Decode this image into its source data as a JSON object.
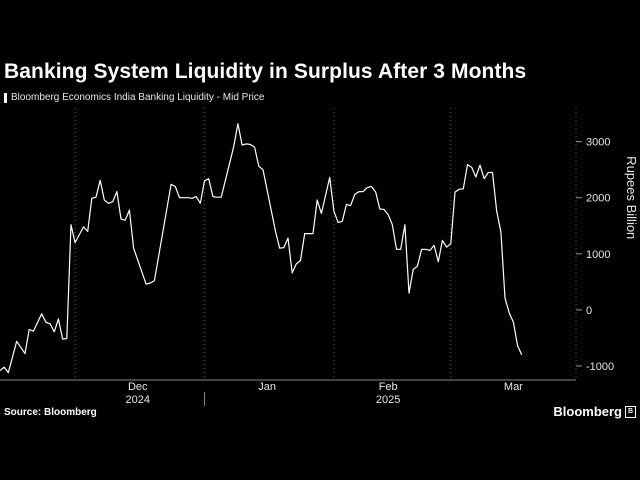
{
  "title": "Banking System Liquidity in Surplus After 3 Months",
  "source": "Source: Bloomberg",
  "brand": "Bloomberg",
  "colors": {
    "background": "#000000",
    "line": "#ffffff",
    "grid": "#5a5a5a",
    "text": "#e6e6e6"
  },
  "chart_data": {
    "type": "line",
    "title": "Banking System Liquidity in Surplus After 3 Months",
    "ylabel": "Rupees Billion",
    "ylim": [
      -1250,
      3600
    ],
    "yticks": [
      -1000,
      0,
      1000,
      2000,
      3000
    ],
    "ytick_labels": [
      "-1000",
      "0",
      "1000",
      "2000",
      "3000"
    ],
    "y_axis_position": "right",
    "grid": "vertical dotted at month starts",
    "xlim": [
      "2024-11-13",
      "2025-03-31"
    ],
    "x_month_ticks": [
      {
        "label": "Dec",
        "date": "2024-12-01",
        "center": "2024-12-16"
      },
      {
        "label": "Jan",
        "date": "2025-01-01",
        "center": "2025-01-16"
      },
      {
        "label": "Feb",
        "date": "2025-02-01",
        "center": "2025-02-14"
      },
      {
        "label": "Mar",
        "date": "2025-03-01",
        "center": "2025-03-16"
      }
    ],
    "x_year_labels": [
      {
        "label": "2024",
        "center": "2024-12-16"
      },
      {
        "label": "2025",
        "center": "2025-02-14"
      }
    ],
    "year_divider": "2025-01-01",
    "legend": [
      "Bloomberg Economics India Banking Liquidity - Mid Price"
    ],
    "series": [
      {
        "name": "Bloomberg Economics India Banking Liquidity - Mid Price",
        "points": [
          [
            "2024-11-13",
            -1080
          ],
          [
            "2024-11-14",
            -1020
          ],
          [
            "2024-11-15",
            -1120
          ],
          [
            "2024-11-17",
            -560
          ],
          [
            "2024-11-19",
            -780
          ],
          [
            "2024-11-20",
            -350
          ],
          [
            "2024-11-21",
            -380
          ],
          [
            "2024-11-23",
            -70
          ],
          [
            "2024-11-24",
            -220
          ],
          [
            "2024-11-25",
            -250
          ],
          [
            "2024-11-26",
            -390
          ],
          [
            "2024-11-27",
            -160
          ],
          [
            "2024-11-28",
            -520
          ],
          [
            "2024-11-29",
            -510
          ],
          [
            "2024-11-30",
            1520
          ],
          [
            "2024-12-01",
            1200
          ],
          [
            "2024-12-03",
            1480
          ],
          [
            "2024-12-04",
            1400
          ],
          [
            "2024-12-05",
            1990
          ],
          [
            "2024-12-06",
            2010
          ],
          [
            "2024-12-07",
            2310
          ],
          [
            "2024-12-08",
            1960
          ],
          [
            "2024-12-09",
            1900
          ],
          [
            "2024-12-10",
            1930
          ],
          [
            "2024-12-11",
            2110
          ],
          [
            "2024-12-12",
            1620
          ],
          [
            "2024-12-13",
            1600
          ],
          [
            "2024-12-14",
            1780
          ],
          [
            "2024-12-15",
            1100
          ],
          [
            "2024-12-18",
            460
          ],
          [
            "2024-12-19",
            480
          ],
          [
            "2024-12-20",
            520
          ],
          [
            "2024-12-24",
            2240
          ],
          [
            "2024-12-25",
            2200
          ],
          [
            "2024-12-26",
            2000
          ],
          [
            "2024-12-28",
            2000
          ],
          [
            "2024-12-29",
            1990
          ],
          [
            "2024-12-30",
            2020
          ],
          [
            "2024-12-31",
            1900
          ],
          [
            "2025-01-01",
            2300
          ],
          [
            "2025-01-02",
            2340
          ],
          [
            "2025-01-03",
            2020
          ],
          [
            "2025-01-04",
            2010
          ],
          [
            "2025-01-05",
            2010
          ],
          [
            "2025-01-08",
            2910
          ],
          [
            "2025-01-09",
            3320
          ],
          [
            "2025-01-10",
            2940
          ],
          [
            "2025-01-11",
            2960
          ],
          [
            "2025-01-12",
            2950
          ],
          [
            "2025-01-13",
            2900
          ],
          [
            "2025-01-14",
            2560
          ],
          [
            "2025-01-15",
            2500
          ],
          [
            "2025-01-18",
            1400
          ],
          [
            "2025-01-19",
            1100
          ],
          [
            "2025-01-20",
            1110
          ],
          [
            "2025-01-21",
            1280
          ],
          [
            "2025-01-22",
            660
          ],
          [
            "2025-01-23",
            820
          ],
          [
            "2025-01-24",
            880
          ],
          [
            "2025-01-25",
            1360
          ],
          [
            "2025-01-27",
            1360
          ],
          [
            "2025-01-28",
            1960
          ],
          [
            "2025-01-29",
            1720
          ],
          [
            "2025-01-31",
            2360
          ],
          [
            "2025-02-01",
            1760
          ],
          [
            "2025-02-02",
            1560
          ],
          [
            "2025-02-03",
            1580
          ],
          [
            "2025-02-04",
            1880
          ],
          [
            "2025-02-05",
            1860
          ],
          [
            "2025-02-06",
            2060
          ],
          [
            "2025-02-07",
            2110
          ],
          [
            "2025-02-08",
            2110
          ],
          [
            "2025-02-09",
            2180
          ],
          [
            "2025-02-10",
            2200
          ],
          [
            "2025-02-11",
            2100
          ],
          [
            "2025-02-12",
            1800
          ],
          [
            "2025-02-13",
            1790
          ],
          [
            "2025-02-14",
            1700
          ],
          [
            "2025-02-15",
            1520
          ],
          [
            "2025-02-16",
            1080
          ],
          [
            "2025-02-17",
            1080
          ],
          [
            "2025-02-18",
            1520
          ],
          [
            "2025-02-19",
            300
          ],
          [
            "2025-02-20",
            720
          ],
          [
            "2025-02-21",
            780
          ],
          [
            "2025-02-22",
            1080
          ],
          [
            "2025-02-23",
            1080
          ],
          [
            "2025-02-24",
            1060
          ],
          [
            "2025-02-25",
            1150
          ],
          [
            "2025-02-26",
            860
          ],
          [
            "2025-02-27",
            1240
          ],
          [
            "2025-02-28",
            1120
          ],
          [
            "2025-03-01",
            1180
          ],
          [
            "2025-03-02",
            2100
          ],
          [
            "2025-03-03",
            2150
          ],
          [
            "2025-03-04",
            2160
          ],
          [
            "2025-03-05",
            2590
          ],
          [
            "2025-03-06",
            2540
          ],
          [
            "2025-03-07",
            2370
          ],
          [
            "2025-03-08",
            2580
          ],
          [
            "2025-03-09",
            2340
          ],
          [
            "2025-03-10",
            2450
          ],
          [
            "2025-03-11",
            2450
          ],
          [
            "2025-03-12",
            1760
          ],
          [
            "2025-03-13",
            1390
          ],
          [
            "2025-03-14",
            210
          ],
          [
            "2025-03-15",
            -50
          ],
          [
            "2025-03-16",
            -220
          ],
          [
            "2025-03-17",
            -640
          ],
          [
            "2025-03-18",
            -800
          ]
        ]
      }
    ]
  }
}
